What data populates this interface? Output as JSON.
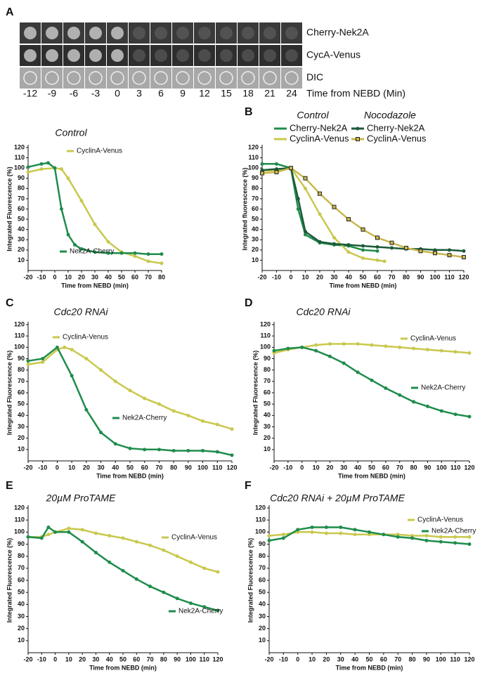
{
  "panel_a": {
    "label": "A",
    "rows": [
      "Cherry-Nek2A",
      "CycA-Venus",
      "DIC"
    ],
    "times": [
      -12,
      -9,
      -6,
      -3,
      0,
      3,
      6,
      9,
      12,
      15,
      18,
      21,
      24
    ],
    "time_label": "Time from NEBD (Min)"
  },
  "chart_data": [
    {
      "type": "line",
      "title": "Control",
      "xlabel": "Time from NEBD (min)",
      "ylabel": "Integrated Fluorescence (%)",
      "xlim": [
        -20,
        80
      ],
      "ylim": [
        0,
        120
      ],
      "xticks": [
        -20,
        -10,
        0,
        10,
        20,
        30,
        40,
        50,
        60,
        70,
        80
      ],
      "yticks": [
        10,
        20,
        30,
        40,
        50,
        60,
        70,
        80,
        90,
        100,
        110,
        120
      ],
      "series": [
        {
          "name": "CyclinA-Venus",
          "color": "#c9c84e",
          "x": [
            -20,
            -10,
            0,
            5,
            10,
            20,
            30,
            40,
            50,
            60,
            70,
            80
          ],
          "values": [
            96,
            99,
            100,
            99,
            90,
            68,
            45,
            28,
            18,
            14,
            9,
            7
          ]
        },
        {
          "name": "Nek2A-Cherry",
          "color": "#1f8c4c",
          "x": [
            -20,
            -10,
            -5,
            0,
            5,
            10,
            15,
            20,
            30,
            40,
            50,
            60,
            70,
            80
          ],
          "values": [
            101,
            104,
            105,
            100,
            60,
            35,
            25,
            21,
            18,
            17,
            17,
            17,
            16,
            16
          ]
        }
      ]
    },
    {
      "type": "line",
      "panel": "B",
      "legend_titles": [
        "Control",
        "Nocodazole"
      ],
      "xlabel": "Time from NEBD (min)",
      "ylabel": "Integrated fluorescence (%)",
      "xlim": [
        -20,
        120
      ],
      "ylim": [
        0,
        120
      ],
      "xticks": [
        -20,
        -10,
        0,
        10,
        20,
        30,
        40,
        50,
        60,
        70,
        80,
        90,
        100,
        110,
        120
      ],
      "yticks": [
        10,
        20,
        30,
        40,
        50,
        60,
        70,
        80,
        90,
        100,
        110,
        120
      ],
      "series": [
        {
          "name": "Cherry-Nek2A",
          "color": "#1f8c4c",
          "x": [
            -20,
            -10,
            0,
            5,
            10,
            20,
            30,
            40,
            50,
            60
          ],
          "values": [
            104,
            104,
            100,
            60,
            35,
            27,
            25,
            24,
            20,
            19
          ]
        },
        {
          "name": "CyclinA-Venus",
          "color": "#c9c84e",
          "x": [
            -20,
            -10,
            0,
            10,
            20,
            30,
            40,
            50,
            60,
            65
          ],
          "values": [
            97,
            98,
            100,
            80,
            55,
            32,
            18,
            12,
            10,
            9
          ]
        },
        {
          "name": "Cherry-Nek2A",
          "color": "#1d5a3a",
          "marker": "circle",
          "x": [
            -20,
            -10,
            0,
            5,
            10,
            20,
            30,
            40,
            50,
            60,
            70,
            80,
            90,
            100,
            110,
            120
          ],
          "values": [
            98,
            99,
            100,
            70,
            38,
            28,
            26,
            25,
            24,
            23,
            22,
            21,
            21,
            20,
            20,
            19
          ]
        },
        {
          "name": "CyclinA-Venus",
          "color": "#c9b84e",
          "marker": "square",
          "x": [
            -20,
            -10,
            0,
            10,
            20,
            30,
            40,
            50,
            60,
            70,
            80,
            90,
            100,
            110,
            120
          ],
          "values": [
            95,
            96,
            100,
            90,
            75,
            62,
            50,
            40,
            32,
            27,
            22,
            19,
            17,
            15,
            13
          ]
        }
      ]
    },
    {
      "type": "line",
      "panel": "C",
      "title": "Cdc20 RNAi",
      "xlabel": "Time from NEBD (min)",
      "ylabel": "Integrated Fluorescence (%)",
      "xlim": [
        -20,
        120
      ],
      "ylim": [
        0,
        120
      ],
      "xticks": [
        -20,
        -10,
        0,
        10,
        20,
        30,
        40,
        50,
        60,
        70,
        80,
        90,
        100,
        110,
        120
      ],
      "yticks": [
        10,
        20,
        30,
        40,
        50,
        60,
        70,
        80,
        90,
        100,
        110,
        120
      ],
      "series": [
        {
          "name": "CyclinA-Venus",
          "color": "#c9c84e",
          "x": [
            -20,
            -10,
            0,
            5,
            10,
            20,
            30,
            40,
            50,
            60,
            70,
            80,
            90,
            100,
            110,
            120
          ],
          "values": [
            85,
            87,
            98,
            100,
            98,
            90,
            80,
            70,
            62,
            55,
            50,
            44,
            40,
            35,
            32,
            28
          ]
        },
        {
          "name": "Nek2A-Cherry",
          "color": "#1f8c4c",
          "x": [
            -20,
            -10,
            0,
            10,
            20,
            30,
            40,
            50,
            60,
            70,
            80,
            90,
            100,
            110,
            120
          ],
          "values": [
            88,
            90,
            100,
            75,
            45,
            25,
            15,
            11,
            10,
            10,
            9,
            9,
            9,
            8,
            5
          ]
        }
      ]
    },
    {
      "type": "line",
      "panel": "D",
      "title": "Cdc20 RNAi",
      "xlabel": "Time from NEBD (min)",
      "ylabel": "Integrated Fluorescence (%)",
      "xlim": [
        -20,
        120
      ],
      "ylim": [
        0,
        120
      ],
      "xticks": [
        -20,
        -10,
        0,
        10,
        20,
        30,
        40,
        50,
        60,
        70,
        80,
        90,
        100,
        110,
        120
      ],
      "yticks": [
        10,
        20,
        30,
        40,
        50,
        60,
        70,
        80,
        90,
        100,
        110,
        120
      ],
      "series": [
        {
          "name": "CyclinA-Venus",
          "color": "#c9c84e",
          "x": [
            -20,
            -10,
            0,
            10,
            20,
            30,
            40,
            50,
            60,
            70,
            80,
            90,
            100,
            110,
            120
          ],
          "values": [
            95,
            98,
            100,
            102,
            103,
            103,
            103,
            102,
            101,
            100,
            99,
            98,
            97,
            96,
            95
          ]
        },
        {
          "name": "Nek2A-Cherry",
          "color": "#1f8c4c",
          "x": [
            -20,
            -10,
            0,
            10,
            20,
            30,
            40,
            50,
            60,
            70,
            80,
            90,
            100,
            110,
            120
          ],
          "values": [
            97,
            99,
            100,
            97,
            92,
            86,
            78,
            71,
            64,
            58,
            52,
            48,
            44,
            41,
            39
          ]
        }
      ]
    },
    {
      "type": "line",
      "panel": "E",
      "title": "20µM ProTAME",
      "xlabel": "Time from NEBD (min)",
      "ylabel": "Integrated Fluorescence (%)",
      "xlim": [
        -20,
        120
      ],
      "ylim": [
        0,
        120
      ],
      "xticks": [
        -20,
        -10,
        0,
        10,
        20,
        30,
        40,
        50,
        60,
        70,
        80,
        90,
        100,
        110,
        120
      ],
      "yticks": [
        10,
        20,
        30,
        40,
        50,
        60,
        70,
        80,
        90,
        100,
        110,
        120
      ],
      "series": [
        {
          "name": "CyclinA-Venus",
          "color": "#c9c84e",
          "x": [
            -20,
            -10,
            -5,
            0,
            10,
            20,
            30,
            40,
            50,
            60,
            70,
            80,
            90,
            100,
            110,
            120
          ],
          "values": [
            96,
            96,
            98,
            100,
            103,
            102,
            99,
            97,
            95,
            92,
            89,
            85,
            80,
            75,
            70,
            67
          ]
        },
        {
          "name": "Nek2A-Cherry",
          "color": "#1f8c4c",
          "x": [
            -20,
            -10,
            -5,
            0,
            10,
            20,
            30,
            40,
            50,
            60,
            70,
            80,
            90,
            100,
            110,
            120
          ],
          "values": [
            96,
            95,
            104,
            100,
            100,
            92,
            83,
            75,
            68,
            61,
            55,
            50,
            45,
            41,
            38,
            35
          ]
        }
      ]
    },
    {
      "type": "line",
      "panel": "F",
      "title": "Cdc20 RNAi + 20µM ProTAME",
      "xlabel": "Time from NEBD (min)",
      "ylabel": "Integrated Fluorescence (%)",
      "xlim": [
        -20,
        120
      ],
      "ylim": [
        0,
        120
      ],
      "xticks": [
        -20,
        -10,
        0,
        10,
        20,
        30,
        40,
        50,
        60,
        70,
        80,
        90,
        100,
        110,
        120
      ],
      "yticks": [
        10,
        20,
        30,
        40,
        50,
        60,
        70,
        80,
        90,
        100,
        110,
        120
      ],
      "series": [
        {
          "name": "CyclinA-Venus",
          "color": "#c9c84e",
          "x": [
            -20,
            -10,
            0,
            10,
            20,
            30,
            40,
            50,
            60,
            70,
            80,
            90,
            100,
            110,
            120
          ],
          "values": [
            97,
            98,
            100,
            100,
            99,
            99,
            98,
            98,
            98,
            98,
            97,
            97,
            96,
            96,
            96
          ]
        },
        {
          "name": "Nek2A-Cherry",
          "color": "#1f8c4c",
          "x": [
            -20,
            -10,
            0,
            10,
            20,
            30,
            40,
            50,
            60,
            70,
            80,
            90,
            100,
            110,
            120
          ],
          "values": [
            93,
            95,
            102,
            104,
            104,
            104,
            102,
            100,
            98,
            96,
            95,
            93,
            92,
            91,
            90
          ]
        }
      ]
    }
  ]
}
